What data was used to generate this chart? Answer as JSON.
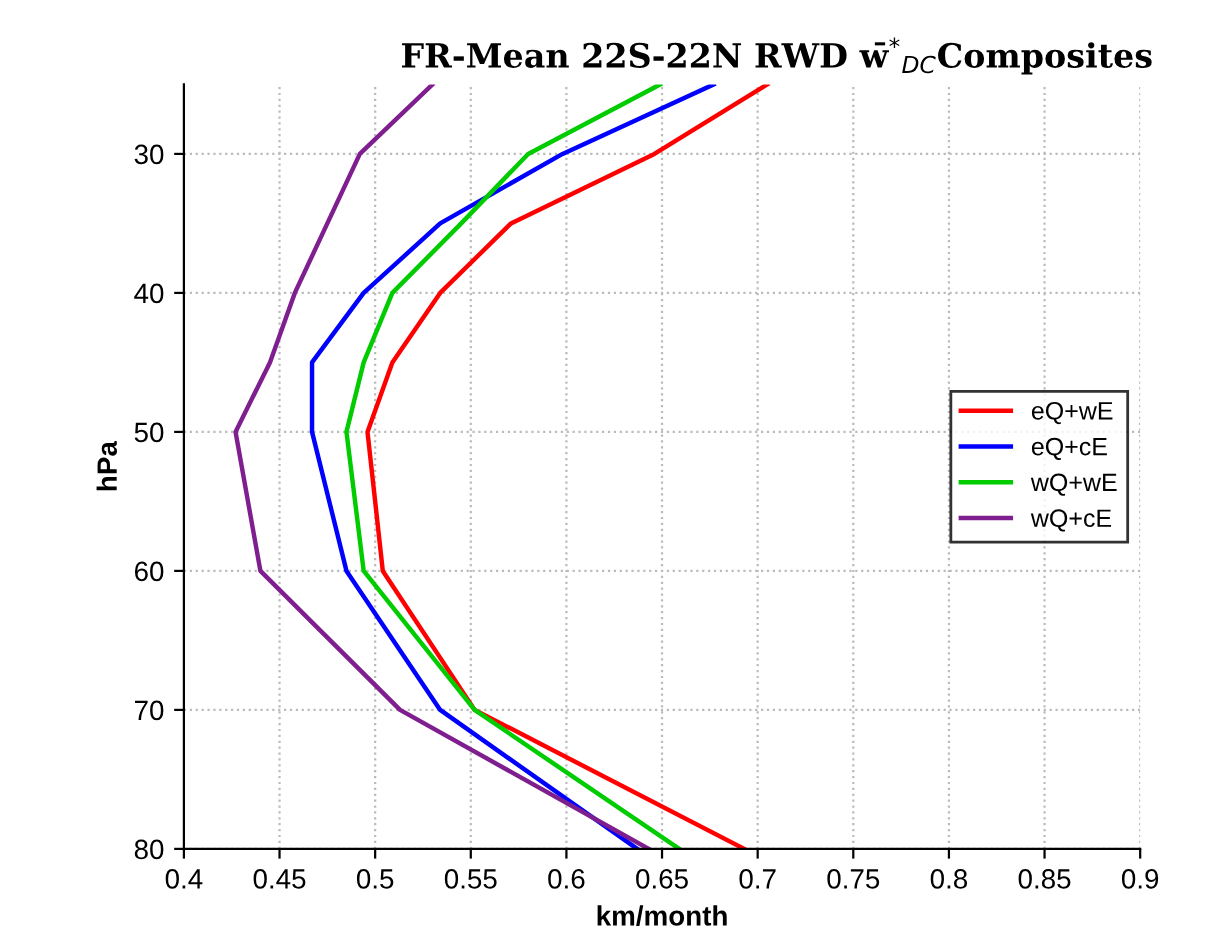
{
  "chart_data": {
    "type": "line",
    "title": "FR-Mean 22S-22N RWD w̄$^{*}$$_{DC}$Composites",
    "xlabel": "km/month",
    "ylabel": "hPa",
    "xlim": [
      0.4,
      0.9
    ],
    "xticks": [
      0.4,
      0.45,
      0.5,
      0.55,
      0.6,
      0.65,
      0.7,
      0.75,
      0.8,
      0.85,
      0.9
    ],
    "ylim": [
      80,
      25
    ],
    "yticks": [
      30,
      40,
      50,
      60,
      70,
      80
    ],
    "grid": true,
    "legend": "right",
    "line_style": "solid",
    "marker": "none",
    "series": [
      {
        "name": "eQ+wE",
        "color": "#ff0000",
        "x": [
          0.705,
          0.646,
          0.571,
          0.534,
          0.509,
          0.496,
          0.504,
          0.552,
          0.693
        ],
        "values": [
          25,
          30,
          35,
          40,
          45,
          50,
          60,
          70,
          80
        ]
      },
      {
        "name": "eQ+cE",
        "color": "#0000ff",
        "x": [
          0.677,
          0.598,
          0.534,
          0.494,
          0.467,
          0.467,
          0.485,
          0.534,
          0.637
        ],
        "values": [
          25,
          30,
          35,
          40,
          45,
          50,
          60,
          70,
          80
        ]
      },
      {
        "name": "wQ+wE",
        "color": "#00cc00",
        "x": [
          0.649,
          0.58,
          0.545,
          0.509,
          0.494,
          0.485,
          0.494,
          0.552,
          0.659
        ],
        "values": [
          25,
          30,
          35,
          40,
          45,
          50,
          60,
          70,
          80
        ]
      },
      {
        "name": "wQ+cE",
        "color": "#7f1f8f",
        "x": [
          0.53,
          0.492,
          0.475,
          0.458,
          0.445,
          0.427,
          0.44,
          0.513,
          0.643
        ],
        "values": [
          25,
          30,
          35,
          40,
          45,
          50,
          60,
          70,
          80
        ]
      }
    ]
  }
}
